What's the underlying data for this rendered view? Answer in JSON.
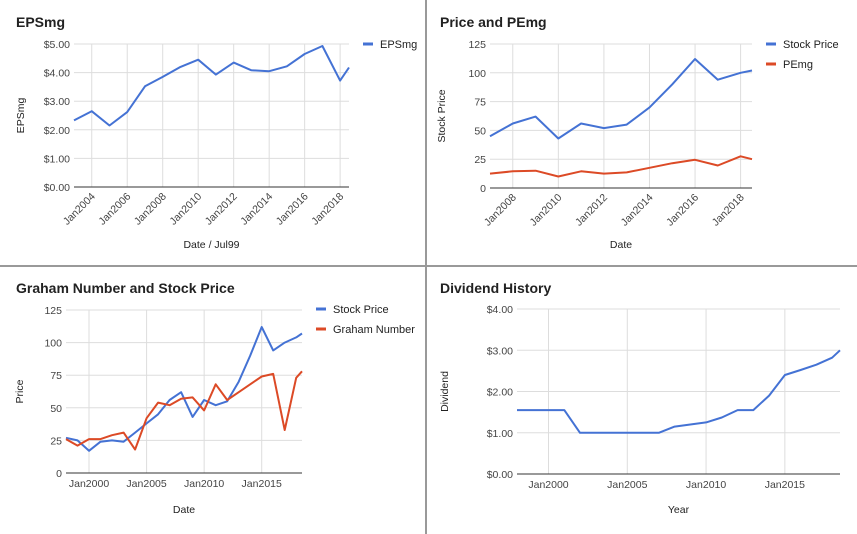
{
  "chart_data": [
    {
      "type": "line",
      "title": "EPSmg",
      "xlabel": "Date / Jul99",
      "ylabel": "EPSmg",
      "xlim": [
        2003.0,
        2018.5
      ],
      "ylim": [
        0,
        5
      ],
      "yticks": [
        0,
        1,
        2,
        3,
        4,
        5
      ],
      "ytick_labels": [
        "$0.00",
        "$1.00",
        "$2.00",
        "$3.00",
        "$4.00",
        "$5.00"
      ],
      "xticks": [
        2004,
        2006,
        2008,
        2010,
        2012,
        2014,
        2016,
        2018
      ],
      "xtick_labels": [
        "Jan2004",
        "Jan2006",
        "Jan2008",
        "Jan2010",
        "Jan2012",
        "Jan2014",
        "Jan2016",
        "Jan2018"
      ],
      "legend_position": "right",
      "series": [
        {
          "name": "EPSmg",
          "color": "#4472d4",
          "x": [
            2003.0,
            2004.0,
            2005.0,
            2006.0,
            2007.0,
            2008.0,
            2009.0,
            2010.0,
            2011.0,
            2012.0,
            2013.0,
            2014.0,
            2015.0,
            2016.0,
            2017.0,
            2018.0,
            2018.5
          ],
          "y": [
            2.33,
            2.65,
            2.15,
            2.62,
            3.52,
            3.85,
            4.2,
            4.45,
            3.93,
            4.35,
            4.08,
            4.05,
            4.22,
            4.65,
            4.93,
            3.72,
            4.18
          ]
        }
      ]
    },
    {
      "type": "line",
      "title": "Price and PEmg",
      "xlabel": "Date",
      "ylabel": "Stock Price",
      "xlim": [
        2007.0,
        2018.5
      ],
      "ylim": [
        0,
        125
      ],
      "yticks": [
        0,
        25,
        50,
        75,
        100,
        125
      ],
      "ytick_labels": [
        "0",
        "25",
        "50",
        "75",
        "100",
        "125"
      ],
      "xticks": [
        2008,
        2010,
        2012,
        2014,
        2016,
        2018
      ],
      "xtick_labels": [
        "Jan2008",
        "Jan2010",
        "Jan2012",
        "Jan2014",
        "Jan2016",
        "Jan2018"
      ],
      "legend_position": "right",
      "series": [
        {
          "name": "Stock Price",
          "color": "#4472d4",
          "x": [
            2007.0,
            2008.0,
            2009.0,
            2010.0,
            2011.0,
            2012.0,
            2013.0,
            2014.0,
            2015.0,
            2016.0,
            2017.0,
            2018.0,
            2018.5
          ],
          "y": [
            45,
            56,
            62,
            43,
            56,
            52,
            55,
            70,
            90,
            112,
            94,
            100,
            102
          ]
        },
        {
          "name": "PEmg",
          "color": "#dc4a26",
          "x": [
            2007.0,
            2008.0,
            2009.0,
            2010.0,
            2011.0,
            2012.0,
            2013.0,
            2014.0,
            2015.0,
            2016.0,
            2017.0,
            2018.0,
            2018.5
          ],
          "y": [
            12.5,
            14.5,
            15,
            10,
            14.5,
            12.5,
            13.5,
            17.5,
            21.5,
            24.5,
            19.5,
            27.5,
            25
          ]
        }
      ]
    },
    {
      "type": "line",
      "title": "Graham Number and Stock Price",
      "xlabel": "Date",
      "ylabel": "Price",
      "xlim": [
        1998.0,
        2018.5
      ],
      "ylim": [
        0,
        125
      ],
      "yticks": [
        0,
        25,
        50,
        75,
        100,
        125
      ],
      "ytick_labels": [
        "0",
        "25",
        "50",
        "75",
        "100",
        "125"
      ],
      "xticks": [
        2000,
        2005,
        2010,
        2015
      ],
      "xtick_labels": [
        "Jan2000",
        "Jan2005",
        "Jan2010",
        "Jan2015"
      ],
      "legend_position": "right",
      "series": [
        {
          "name": "Stock Price",
          "color": "#4472d4",
          "x": [
            1998.0,
            1999.0,
            2000.0,
            2001.0,
            2002.0,
            2003.0,
            2004.0,
            2005.0,
            2006.0,
            2007.0,
            2008.0,
            2009.0,
            2010.0,
            2011.0,
            2012.0,
            2013.0,
            2014.0,
            2015.0,
            2016.0,
            2017.0,
            2018.0,
            2018.5
          ],
          "y": [
            27,
            25,
            17,
            24,
            25,
            24,
            31,
            38,
            45,
            56,
            62,
            43,
            56,
            52,
            55,
            70,
            90,
            112,
            94,
            100,
            104,
            107
          ]
        },
        {
          "name": "Graham Number",
          "color": "#dc4a26",
          "x": [
            1998.0,
            1999.0,
            2000.0,
            2001.0,
            2002.0,
            2003.0,
            2004.0,
            2005.0,
            2006.0,
            2007.0,
            2008.0,
            2009.0,
            2010.0,
            2011.0,
            2012.0,
            2013.0,
            2014.0,
            2015.0,
            2016.0,
            2017.0,
            2018.0,
            2018.5
          ],
          "y": [
            26,
            21,
            26,
            26,
            29,
            31,
            18,
            42,
            54,
            52,
            57,
            58,
            48,
            68,
            56,
            62,
            68,
            74,
            76,
            33,
            73,
            78
          ]
        }
      ]
    },
    {
      "type": "line",
      "title": "Dividend History",
      "xlabel": "Year",
      "ylabel": "Dividend",
      "xlim": [
        1998.0,
        2018.5
      ],
      "ylim": [
        0,
        4
      ],
      "yticks": [
        0,
        1,
        2,
        3,
        4
      ],
      "ytick_labels": [
        "$0.00",
        "$1.00",
        "$2.00",
        "$3.00",
        "$4.00"
      ],
      "xticks": [
        2000,
        2005,
        2010,
        2015
      ],
      "xtick_labels": [
        "Jan2000",
        "Jan2005",
        "Jan2010",
        "Jan2015"
      ],
      "legend_position": "none",
      "series": [
        {
          "color": "#4472d4",
          "x": [
            1998.0,
            1999.0,
            2000.0,
            2001.0,
            2002.0,
            2003.0,
            2004.0,
            2005.0,
            2006.0,
            2007.0,
            2008.0,
            2009.0,
            2010.0,
            2011.0,
            2012.0,
            2013.0,
            2014.0,
            2015.0,
            2016.0,
            2017.0,
            2018.0,
            2018.5
          ],
          "y": [
            1.55,
            1.55,
            1.55,
            1.55,
            1.0,
            1.0,
            1.0,
            1.0,
            1.0,
            1.0,
            1.15,
            1.2,
            1.25,
            1.37,
            1.55,
            1.55,
            1.9,
            2.4,
            2.52,
            2.65,
            2.82,
            3.0
          ]
        }
      ]
    }
  ]
}
